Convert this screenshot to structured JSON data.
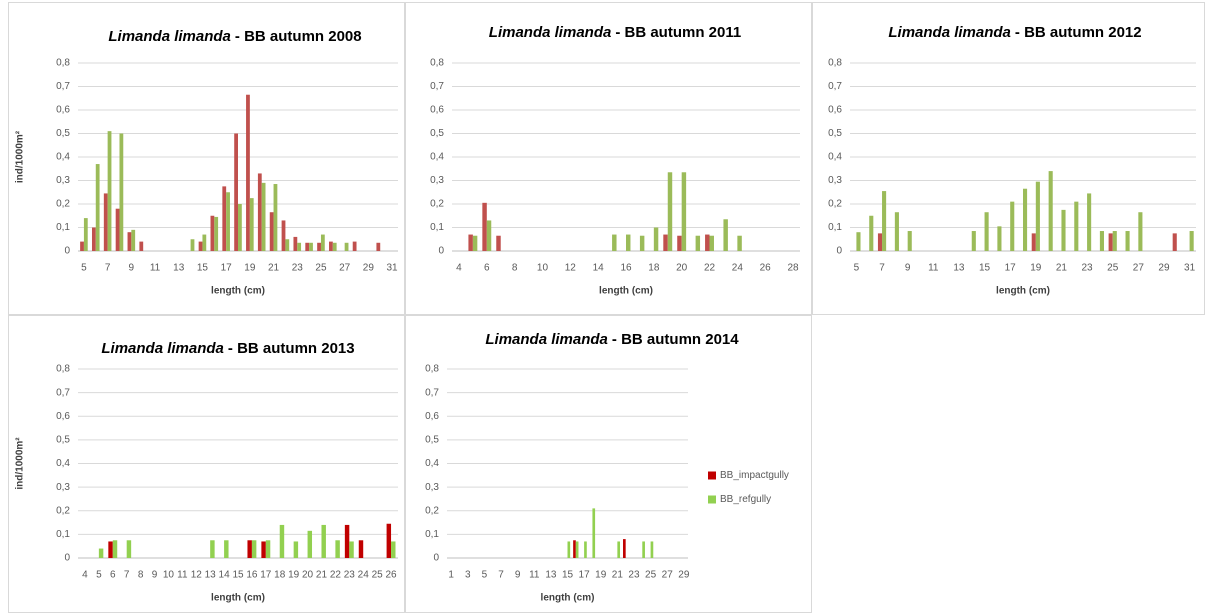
{
  "chart_data": [
    {
      "type": "bar",
      "species": "Limanda limanda",
      "title": "- BB autumn 2008",
      "ylabel": "ind/1000m²",
      "xlabel": "length (cm)",
      "categories": [
        "5",
        null,
        "7",
        null,
        "9",
        null,
        "11",
        null,
        "13",
        null,
        "15",
        null,
        "17",
        null,
        "19",
        null,
        "21",
        null,
        "23",
        null,
        "25",
        null,
        "27",
        null,
        "29",
        null,
        "31"
      ],
      "series": [
        {
          "color": "#c0504d",
          "values": [
            0.04,
            0.1,
            0.245,
            0.18,
            0.08,
            0.04,
            0,
            0,
            0,
            0,
            0.04,
            0.15,
            0.275,
            0.5,
            0.665,
            0.33,
            0.165,
            0.13,
            0.06,
            0.035,
            0.035,
            0.04,
            0,
            0.04,
            0,
            0.035,
            0
          ]
        },
        {
          "color": "#9bbb59",
          "values": [
            0.14,
            0.37,
            0.51,
            0.5,
            0.09,
            0,
            0,
            0,
            0,
            0.05,
            0.07,
            0.145,
            0.25,
            0.2,
            0.225,
            0.29,
            0.285,
            0.05,
            0.035,
            0.035,
            0.07,
            0.035,
            0.035,
            0,
            0,
            0,
            0
          ]
        }
      ],
      "ylim": [
        0,
        0.8
      ],
      "yticks": [
        0,
        {
          "value": 0.1,
          "label": "0,1"
        },
        {
          "value": 0.2,
          "label": "0,2"
        },
        {
          "value": 0.3,
          "label": "0,3"
        },
        {
          "value": 0.4,
          "label": "0,4"
        },
        {
          "value": 0.5,
          "label": "0,5"
        },
        {
          "value": 0.6,
          "label": "0,6"
        },
        {
          "value": 0.7,
          "label": "0,7"
        },
        {
          "value": 0.8,
          "label": "0,8"
        }
      ],
      "grid": true
    },
    {
      "type": "bar",
      "species": "Limanda limanda",
      "title": "- BB autumn 2011",
      "xlabel": "length (cm)",
      "categories": [
        "4",
        null,
        "6",
        null,
        "8",
        null,
        "10",
        null,
        "12",
        null,
        "14",
        null,
        "16",
        null,
        "18",
        null,
        "20",
        null,
        "22",
        null,
        "24",
        null,
        "26",
        null,
        "28"
      ],
      "series": [
        {
          "color": "#c0504d",
          "values": [
            0,
            0.07,
            0.205,
            0.065,
            0,
            0,
            0,
            0,
            0,
            0,
            0,
            0,
            0,
            0,
            0,
            0.07,
            0.065,
            0,
            0.07,
            0,
            0,
            0,
            0,
            0,
            0
          ]
        },
        {
          "color": "#9bbb59",
          "values": [
            0,
            0.065,
            0.13,
            0,
            0,
            0,
            0,
            0,
            0,
            0,
            0,
            0.07,
            0.07,
            0.065,
            0.1,
            0.335,
            0.335,
            0.065,
            0.065,
            0.135,
            0.065,
            0,
            0,
            0,
            0
          ]
        }
      ],
      "ylim": [
        0,
        0.8
      ],
      "yticks": [
        0,
        {
          "value": 0.1,
          "label": "0,1"
        },
        {
          "value": 0.2,
          "label": "0,2"
        },
        {
          "value": 0.3,
          "label": "0,3"
        },
        {
          "value": 0.4,
          "label": "0,4"
        },
        {
          "value": 0.5,
          "label": "0,5"
        },
        {
          "value": 0.6,
          "label": "0,6"
        },
        {
          "value": 0.7,
          "label": "0,7"
        },
        {
          "value": 0.8,
          "label": "0,8"
        }
      ],
      "grid": true
    },
    {
      "type": "bar",
      "species": "Limanda limanda",
      "title": "- BB autumn 2012",
      "xlabel": "length (cm)",
      "categories": [
        "5",
        null,
        "7",
        null,
        "9",
        null,
        "11",
        null,
        "13",
        null,
        "15",
        null,
        "17",
        null,
        "19",
        null,
        "21",
        null,
        "23",
        null,
        "25",
        null,
        "27",
        null,
        "29",
        null,
        "31"
      ],
      "series": [
        {
          "color": "#c0504d",
          "values": [
            0,
            0,
            0.075,
            0,
            0,
            0,
            0,
            0,
            0,
            0,
            0,
            0,
            0,
            0,
            0.075,
            0,
            0,
            0,
            0,
            0,
            0.075,
            0,
            0,
            0,
            0,
            0.075,
            0
          ]
        },
        {
          "color": "#9bbb59",
          "values": [
            0.08,
            0.15,
            0.255,
            0.165,
            0.085,
            0,
            0,
            0,
            0,
            0.085,
            0.165,
            0.105,
            0.21,
            0.265,
            0.295,
            0.34,
            0.175,
            0.21,
            0.245,
            0.085,
            0.085,
            0.085,
            0.165,
            0,
            0,
            0,
            0.085
          ]
        }
      ],
      "ylim": [
        0,
        0.8
      ],
      "yticks": [
        0,
        {
          "value": 0.1,
          "label": "0,1"
        },
        {
          "value": 0.2,
          "label": "0,2"
        },
        {
          "value": 0.3,
          "label": "0,3"
        },
        {
          "value": 0.4,
          "label": "0,4"
        },
        {
          "value": 0.5,
          "label": "0,5"
        },
        {
          "value": 0.6,
          "label": "0,6"
        },
        {
          "value": 0.7,
          "label": "0,7"
        },
        {
          "value": 0.8,
          "label": "0,8"
        }
      ],
      "grid": true
    },
    {
      "type": "bar",
      "species": "Limanda limanda",
      "title": "- BB autumn 2013",
      "ylabel": "ind/1000m²",
      "xlabel": "length (cm)",
      "categories": [
        "4",
        "5",
        "6",
        "7",
        "8",
        "9",
        "10",
        "11",
        "12",
        "13",
        "14",
        "15",
        "16",
        "17",
        "18",
        "19",
        "20",
        "21",
        "22",
        "23",
        "24",
        "25",
        "26"
      ],
      "series": [
        {
          "color": "#c00000",
          "values": [
            0,
            0,
            0.07,
            0,
            0,
            0,
            0,
            0,
            0,
            0,
            0,
            0,
            0.075,
            0.07,
            0,
            0,
            0,
            0,
            0,
            0.14,
            0.075,
            0,
            0.145
          ]
        },
        {
          "color": "#92d050",
          "values": [
            0,
            0.04,
            0.075,
            0.075,
            0,
            0,
            0,
            0,
            0,
            0.075,
            0.075,
            0,
            0.075,
            0.075,
            0.14,
            0.07,
            0.115,
            0.14,
            0.075,
            0.07,
            0,
            0,
            0.07
          ]
        }
      ],
      "ylim": [
        0,
        0.8
      ],
      "yticks": [
        0,
        {
          "value": 0.1,
          "label": "0,1"
        },
        {
          "value": 0.2,
          "label": "0,2"
        },
        {
          "value": 0.3,
          "label": "0,3"
        },
        {
          "value": 0.4,
          "label": "0,4"
        },
        {
          "value": 0.5,
          "label": "0,5"
        },
        {
          "value": 0.6,
          "label": "0,6"
        },
        {
          "value": 0.7,
          "label": "0,7"
        },
        {
          "value": 0.8,
          "label": "0,8"
        }
      ],
      "grid": true
    },
    {
      "type": "bar",
      "species": "Limanda limanda",
      "title": "- BB autumn 2014",
      "xlabel": "length (cm)",
      "legend": "right",
      "categories": [
        "1",
        null,
        "3",
        null,
        "5",
        null,
        "7",
        null,
        "9",
        null,
        "11",
        null,
        "13",
        null,
        "15",
        null,
        "17",
        null,
        "19",
        null,
        "21",
        null,
        "23",
        null,
        "25",
        null,
        "27",
        null,
        "29"
      ],
      "series": [
        {
          "name": "BB_impactgully",
          "color": "#c00000",
          "values": [
            0,
            0,
            0,
            0,
            0,
            0,
            0,
            0,
            0,
            0,
            0,
            0,
            0,
            0,
            0,
            0.075,
            0,
            0,
            0,
            0,
            0,
            0.08,
            0,
            0,
            0,
            0,
            0,
            0,
            0
          ]
        },
        {
          "name": "BB_refgully",
          "color": "#92d050",
          "values": [
            0,
            0,
            0,
            0,
            0,
            0,
            0,
            0,
            0,
            0,
            0,
            0,
            0,
            0,
            0.07,
            0.07,
            0.07,
            0.21,
            0,
            0,
            0.07,
            0,
            0,
            0.07,
            0.07,
            0,
            0,
            0,
            0
          ]
        }
      ],
      "ylim": [
        0,
        0.8
      ],
      "yticks": [
        0,
        {
          "value": 0.1,
          "label": "0,1"
        },
        {
          "value": 0.2,
          "label": "0,2"
        },
        {
          "value": 0.3,
          "label": "0,3"
        },
        {
          "value": 0.4,
          "label": "0,4"
        },
        {
          "value": 0.5,
          "label": "0,5"
        },
        {
          "value": 0.6,
          "label": "0,6"
        },
        {
          "value": 0.7,
          "label": "0,7"
        },
        {
          "value": 0.8,
          "label": "0,8"
        }
      ],
      "grid": true
    }
  ]
}
